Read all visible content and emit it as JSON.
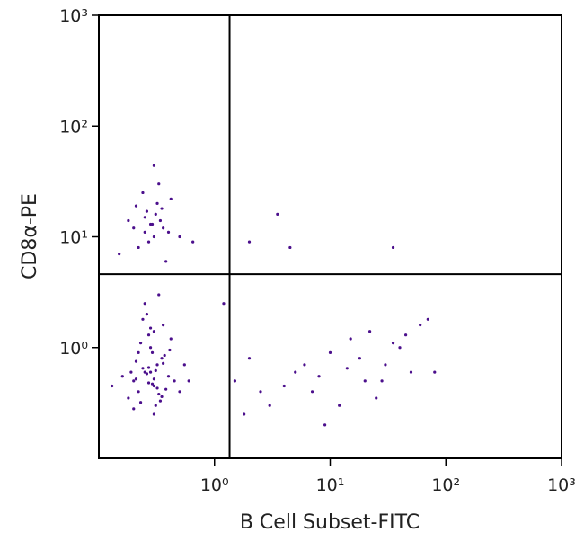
{
  "chart_data": {
    "type": "scatter",
    "x_label": "B Cell Subset-FITC",
    "y_label": "CD8α-PE",
    "xscale": "log",
    "yscale": "log",
    "xlim": [
      0.1,
      1000
    ],
    "ylim": [
      0.1,
      1000
    ],
    "xticks": [
      {
        "value": 1,
        "label": "10⁰"
      },
      {
        "value": 10,
        "label": "10¹"
      },
      {
        "value": 100,
        "label": "10²"
      },
      {
        "value": 1000,
        "label": "10³"
      }
    ],
    "yticks": [
      {
        "value": 1,
        "label": "10⁰"
      },
      {
        "value": 10,
        "label": "10¹"
      },
      {
        "value": 100,
        "label": "10²"
      },
      {
        "value": 1000,
        "label": "10³"
      }
    ],
    "gates": {
      "x": 1.35,
      "y": 4.6
    },
    "series": [
      {
        "color": "#4b0f8c",
        "x": [
          0.2,
          0.25,
          0.3,
          0.35,
          0.28,
          0.22,
          0.32,
          0.4,
          0.18,
          0.27,
          0.31,
          0.24,
          0.36,
          0.45,
          0.21,
          0.29,
          0.33,
          0.26,
          0.38,
          0.19,
          0.23,
          0.3,
          0.34,
          0.27,
          0.42,
          0.25,
          0.31,
          0.2,
          0.37,
          0.28,
          0.16,
          0.5,
          0.55,
          0.22,
          0.3,
          0.26,
          0.33,
          0.29,
          0.24,
          0.35,
          0.6,
          0.13,
          0.41,
          0.27,
          0.32,
          0.23,
          0.3,
          0.36,
          0.21,
          0.28,
          0.2,
          0.25,
          0.3,
          0.35,
          0.28,
          0.22,
          0.32,
          0.4,
          0.18,
          0.27,
          0.31,
          0.24,
          0.36,
          0.15,
          0.42,
          0.29,
          0.33,
          0.26,
          0.5,
          0.21,
          0.3,
          0.38,
          0.25,
          0.65,
          0.34,
          1.5,
          2,
          3,
          5,
          7,
          10,
          15,
          20,
          25,
          30,
          40,
          50,
          60,
          80,
          1.8,
          4,
          8,
          12,
          18,
          35,
          2.5,
          6,
          9,
          14,
          28,
          45,
          3.5,
          22,
          1.2,
          70,
          4.5,
          35,
          2
        ],
        "y": [
          0.5,
          0.6,
          0.45,
          0.8,
          1.0,
          0.4,
          0.7,
          0.55,
          0.35,
          1.3,
          0.3,
          0.65,
          1.6,
          0.5,
          0.75,
          0.9,
          0.38,
          2.0,
          0.42,
          0.6,
          1.1,
          0.52,
          0.33,
          0.48,
          1.2,
          2.5,
          0.62,
          0.28,
          0.85,
          1.5,
          0.55,
          0.4,
          0.7,
          0.9,
          0.25,
          0.58,
          3.0,
          0.47,
          1.8,
          0.36,
          0.5,
          0.45,
          0.95,
          0.66,
          0.43,
          0.32,
          1.4,
          0.72,
          0.52,
          0.6,
          12,
          15,
          10,
          18,
          13,
          8,
          20,
          11,
          14,
          9,
          16,
          25,
          12,
          7,
          22,
          13,
          30,
          17,
          10,
          19,
          44,
          6,
          11,
          9,
          14,
          0.5,
          0.8,
          0.3,
          0.6,
          0.4,
          0.9,
          1.2,
          0.5,
          0.35,
          0.7,
          1.0,
          0.6,
          1.6,
          0.6,
          0.25,
          0.45,
          0.55,
          0.3,
          0.8,
          1.1,
          0.4,
          0.7,
          0.2,
          0.65,
          0.5,
          1.3,
          16,
          1.4,
          2.5,
          1.8,
          8,
          8,
          9
        ]
      }
    ]
  }
}
